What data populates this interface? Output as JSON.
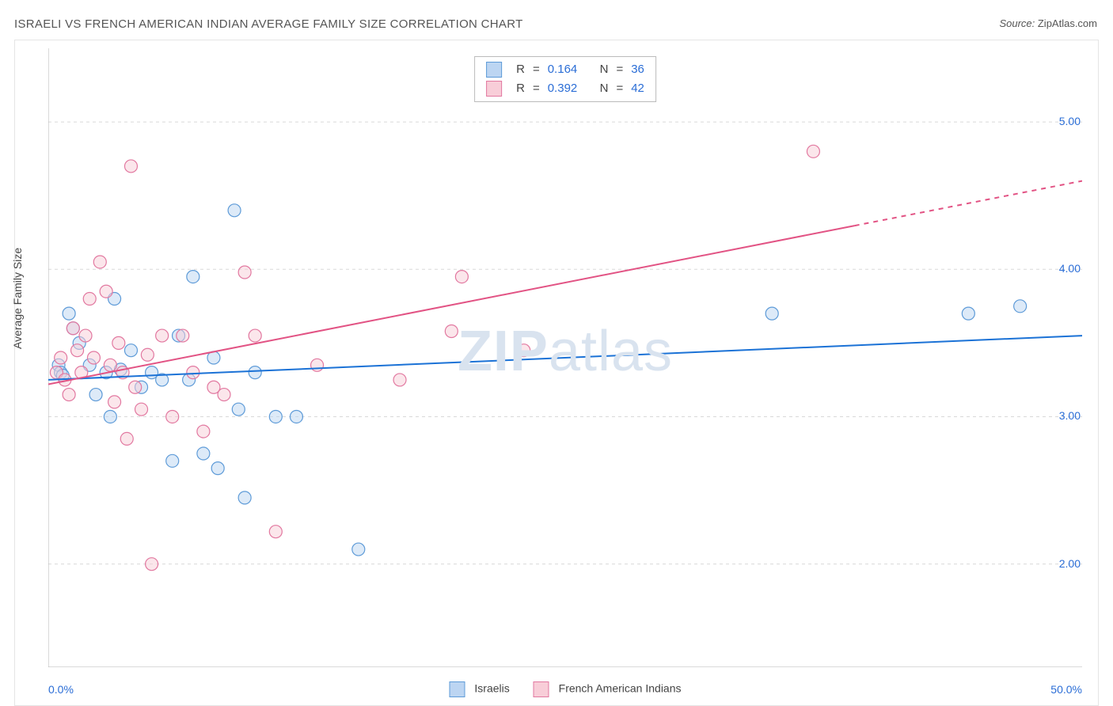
{
  "title": "ISRAELI VS FRENCH AMERICAN INDIAN AVERAGE FAMILY SIZE CORRELATION CHART",
  "source_label": "Source: ",
  "source_value": "ZipAtlas.com",
  "watermark_zip": "ZIP",
  "watermark_atlas": "atlas",
  "chart": {
    "type": "scatter",
    "ylabel": "Average Family Size",
    "x_min_label": "0.0%",
    "x_max_label": "50.0%",
    "x_domain": [
      0,
      50
    ],
    "y_domain": [
      1.3,
      5.5
    ],
    "y_ticks": [
      2.0,
      3.0,
      4.0,
      5.0
    ],
    "y_tick_labels": [
      "2.00",
      "3.00",
      "4.00",
      "5.00"
    ],
    "x_ticks": [
      4.8,
      12.7,
      21.0,
      29.4,
      37.7,
      46.0,
      50.0
    ],
    "grid_color": "#d9d9d9",
    "axis_color": "#b5b5b5",
    "background": "#ffffff",
    "marker_radius": 8,
    "marker_stroke_width": 1.2,
    "marker_fill_opacity": 0.5,
    "line_width": 2,
    "dash_pattern": "6 6",
    "series": [
      {
        "id": "israelis",
        "label": "Israelis",
        "fill": "#bcd5f2",
        "stroke": "#5e9bd8",
        "line_color": "#1b72d6",
        "R": "0.164",
        "N": "36",
        "trend": {
          "x1": 0,
          "y1": 3.25,
          "x2": 50,
          "y2": 3.55,
          "dash_from_x": 50
        },
        "points": [
          [
            0.5,
            3.35
          ],
          [
            0.6,
            3.3
          ],
          [
            0.7,
            3.28
          ],
          [
            1.0,
            3.7
          ],
          [
            1.2,
            3.6
          ],
          [
            1.5,
            3.5
          ],
          [
            2.0,
            3.35
          ],
          [
            2.3,
            3.15
          ],
          [
            2.8,
            3.3
          ],
          [
            3.0,
            3.0
          ],
          [
            3.2,
            3.8
          ],
          [
            3.5,
            3.32
          ],
          [
            4.0,
            3.45
          ],
          [
            4.5,
            3.2
          ],
          [
            5.0,
            3.3
          ],
          [
            5.5,
            3.25
          ],
          [
            6.0,
            2.7
          ],
          [
            6.3,
            3.55
          ],
          [
            6.8,
            3.25
          ],
          [
            7.0,
            3.95
          ],
          [
            7.5,
            2.75
          ],
          [
            8.0,
            3.4
          ],
          [
            8.2,
            2.65
          ],
          [
            9.0,
            4.4
          ],
          [
            9.2,
            3.05
          ],
          [
            9.5,
            2.45
          ],
          [
            10.0,
            3.3
          ],
          [
            11.0,
            3.0
          ],
          [
            12.0,
            3.0
          ],
          [
            15.0,
            2.1
          ],
          [
            35.0,
            3.7
          ],
          [
            44.5,
            3.7
          ],
          [
            47.0,
            3.75
          ]
        ]
      },
      {
        "id": "french_ai",
        "label": "French American Indians",
        "fill": "#f8cdd8",
        "stroke": "#e278a0",
        "line_color": "#e25384",
        "R": "0.392",
        "N": "42",
        "trend": {
          "x1": 0,
          "y1": 3.22,
          "x2": 50,
          "y2": 4.6,
          "dash_from_x": 39
        },
        "points": [
          [
            0.4,
            3.3
          ],
          [
            0.6,
            3.4
          ],
          [
            0.8,
            3.25
          ],
          [
            1.0,
            3.15
          ],
          [
            1.2,
            3.6
          ],
          [
            1.4,
            3.45
          ],
          [
            1.6,
            3.3
          ],
          [
            1.8,
            3.55
          ],
          [
            2.0,
            3.8
          ],
          [
            2.2,
            3.4
          ],
          [
            2.5,
            4.05
          ],
          [
            2.8,
            3.85
          ],
          [
            3.0,
            3.35
          ],
          [
            3.2,
            3.1
          ],
          [
            3.4,
            3.5
          ],
          [
            3.6,
            3.3
          ],
          [
            3.8,
            2.85
          ],
          [
            4.0,
            4.7
          ],
          [
            4.2,
            3.2
          ],
          [
            4.5,
            3.05
          ],
          [
            4.8,
            3.42
          ],
          [
            5.0,
            2.0
          ],
          [
            5.5,
            3.55
          ],
          [
            6.0,
            3.0
          ],
          [
            6.5,
            3.55
          ],
          [
            7.0,
            3.3
          ],
          [
            7.5,
            2.9
          ],
          [
            8.0,
            3.2
          ],
          [
            8.5,
            3.15
          ],
          [
            9.5,
            3.98
          ],
          [
            10.0,
            3.55
          ],
          [
            11.0,
            2.22
          ],
          [
            13.0,
            3.35
          ],
          [
            17.0,
            3.25
          ],
          [
            19.5,
            3.58
          ],
          [
            20.0,
            3.95
          ],
          [
            23.0,
            3.45
          ],
          [
            37.0,
            4.8
          ]
        ]
      }
    ]
  },
  "legend": {
    "r_label": "R",
    "n_label": "N",
    "equals": " = "
  }
}
